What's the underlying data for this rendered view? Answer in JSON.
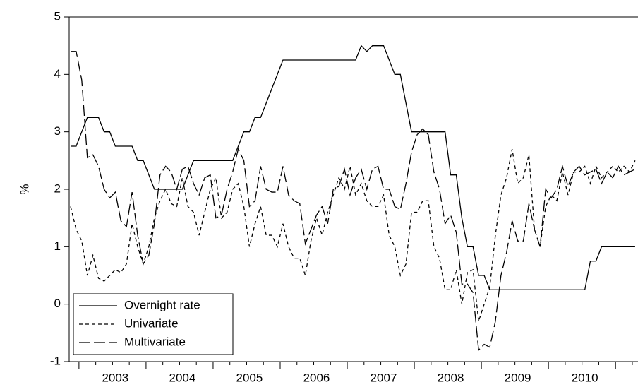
{
  "chart_data": {
    "type": "line",
    "y_label": "%",
    "categories": [
      null,
      null,
      null,
      null,
      null,
      null,
      null,
      null,
      "2003",
      null,
      null,
      null,
      null,
      null,
      null,
      null,
      null,
      null,
      null,
      null,
      "2004",
      null,
      null,
      null,
      null,
      null,
      null,
      null,
      null,
      null,
      null,
      null,
      "2005",
      null,
      null,
      null,
      null,
      null,
      null,
      null,
      null,
      null,
      null,
      null,
      "2006",
      null,
      null,
      null,
      null,
      null,
      null,
      null,
      null,
      null,
      null,
      null,
      "2007",
      null,
      null,
      null,
      null,
      null,
      null,
      null,
      null,
      null,
      null,
      null,
      "2008",
      null,
      null,
      null,
      null,
      null,
      null,
      null,
      null,
      null,
      null,
      null,
      "2009",
      null,
      null,
      null,
      null,
      null,
      null,
      null,
      null,
      null,
      null,
      null,
      "2010",
      null,
      null,
      null,
      null,
      null,
      null,
      null,
      null,
      null
    ],
    "series": [
      {
        "name": "Overnight rate",
        "color": "#000000",
        "style": "solid",
        "values": [
          2.75,
          2.75,
          3.0,
          3.25,
          3.25,
          3.25,
          3.0,
          3.0,
          2.75,
          2.75,
          2.75,
          2.75,
          2.5,
          2.5,
          2.25,
          2.0,
          2.0,
          2.0,
          2.0,
          2.0,
          2.0,
          2.25,
          2.5,
          2.5,
          2.5,
          2.5,
          2.5,
          2.5,
          2.5,
          2.5,
          2.75,
          3.0,
          3.0,
          3.25,
          3.25,
          3.5,
          3.75,
          4.0,
          4.25,
          4.25,
          4.25,
          4.25,
          4.25,
          4.25,
          4.25,
          4.25,
          4.25,
          4.25,
          4.25,
          4.25,
          4.25,
          4.25,
          4.5,
          4.4,
          4.5,
          4.5,
          4.5,
          4.25,
          4.0,
          4.0,
          3.5,
          3.0,
          3.0,
          3.0,
          3.0,
          3.0,
          3.0,
          3.0,
          2.25,
          2.25,
          1.5,
          1.0,
          1.0,
          0.5,
          0.5,
          0.25,
          0.25,
          0.25,
          0.25,
          0.25,
          0.25,
          0.25,
          0.25,
          0.25,
          0.25,
          0.25,
          0.25,
          0.25,
          0.25,
          0.25,
          0.25,
          0.25,
          0.25,
          0.75,
          0.75,
          1.0,
          1.0,
          1.0,
          1.0,
          1.0,
          1.0,
          1.0
        ]
      },
      {
        "name": "Univariate",
        "color": "#000000",
        "style": "dashed",
        "values": [
          1.7,
          1.3,
          1.1,
          0.5,
          0.85,
          0.45,
          0.4,
          0.5,
          0.6,
          0.55,
          0.7,
          1.4,
          1.0,
          0.7,
          1.0,
          1.5,
          1.8,
          2.0,
          1.75,
          1.7,
          2.2,
          1.7,
          1.6,
          1.2,
          1.6,
          2.0,
          2.2,
          1.5,
          1.6,
          2.0,
          2.1,
          1.7,
          1.0,
          1.4,
          1.7,
          1.2,
          1.2,
          1.0,
          1.4,
          1.0,
          0.8,
          0.8,
          0.5,
          1.1,
          1.5,
          1.2,
          1.6,
          1.9,
          2.2,
          2.0,
          2.4,
          1.9,
          2.1,
          1.8,
          1.7,
          1.7,
          1.9,
          1.2,
          1.0,
          0.5,
          0.7,
          1.6,
          1.6,
          1.8,
          1.8,
          1.0,
          0.8,
          0.25,
          0.25,
          0.6,
          0.0,
          0.55,
          0.6,
          -0.3,
          0.0,
          0.3,
          1.2,
          1.9,
          2.2,
          2.7,
          2.1,
          2.2,
          2.6,
          1.3,
          1.0,
          1.7,
          1.9,
          1.8,
          2.3,
          1.9,
          2.3,
          2.3,
          2.4,
          2.1,
          2.4,
          2.2,
          2.3,
          2.4,
          2.3,
          2.4,
          2.3,
          2.5
        ]
      },
      {
        "name": "Multivariate",
        "color": "#000000",
        "style": "longdash",
        "values": [
          4.4,
          4.4,
          3.9,
          2.55,
          2.6,
          2.4,
          2.0,
          1.85,
          1.95,
          1.45,
          1.35,
          1.95,
          1.2,
          0.7,
          0.85,
          1.4,
          2.25,
          2.4,
          2.3,
          2.0,
          2.35,
          2.4,
          2.1,
          1.9,
          2.2,
          2.25,
          1.5,
          1.55,
          2.0,
          2.3,
          2.7,
          2.5,
          1.7,
          1.8,
          2.4,
          2.0,
          1.95,
          1.95,
          2.4,
          1.9,
          1.8,
          1.75,
          1.05,
          1.3,
          1.55,
          1.7,
          1.4,
          2.0,
          2.05,
          2.35,
          1.9,
          2.2,
          2.35,
          2.0,
          2.35,
          2.4,
          2.0,
          2.0,
          1.7,
          1.65,
          2.1,
          2.65,
          2.95,
          3.05,
          2.95,
          2.3,
          2.0,
          1.4,
          1.55,
          1.25,
          0.35,
          0.35,
          0.2,
          -0.8,
          -0.7,
          -0.75,
          -0.3,
          0.5,
          0.9,
          1.45,
          1.1,
          1.1,
          1.75,
          1.3,
          1.0,
          2.0,
          1.85,
          2.0,
          2.4,
          2.05,
          2.3,
          2.4,
          2.25,
          2.3,
          2.35,
          2.1,
          2.3,
          2.2,
          2.4,
          2.25,
          2.3,
          2.35
        ]
      }
    ],
    "ylim": [
      -1,
      5
    ],
    "yticks": [
      -1,
      0,
      1,
      2,
      3,
      4,
      5
    ],
    "grid": false,
    "legend": "lower left"
  }
}
